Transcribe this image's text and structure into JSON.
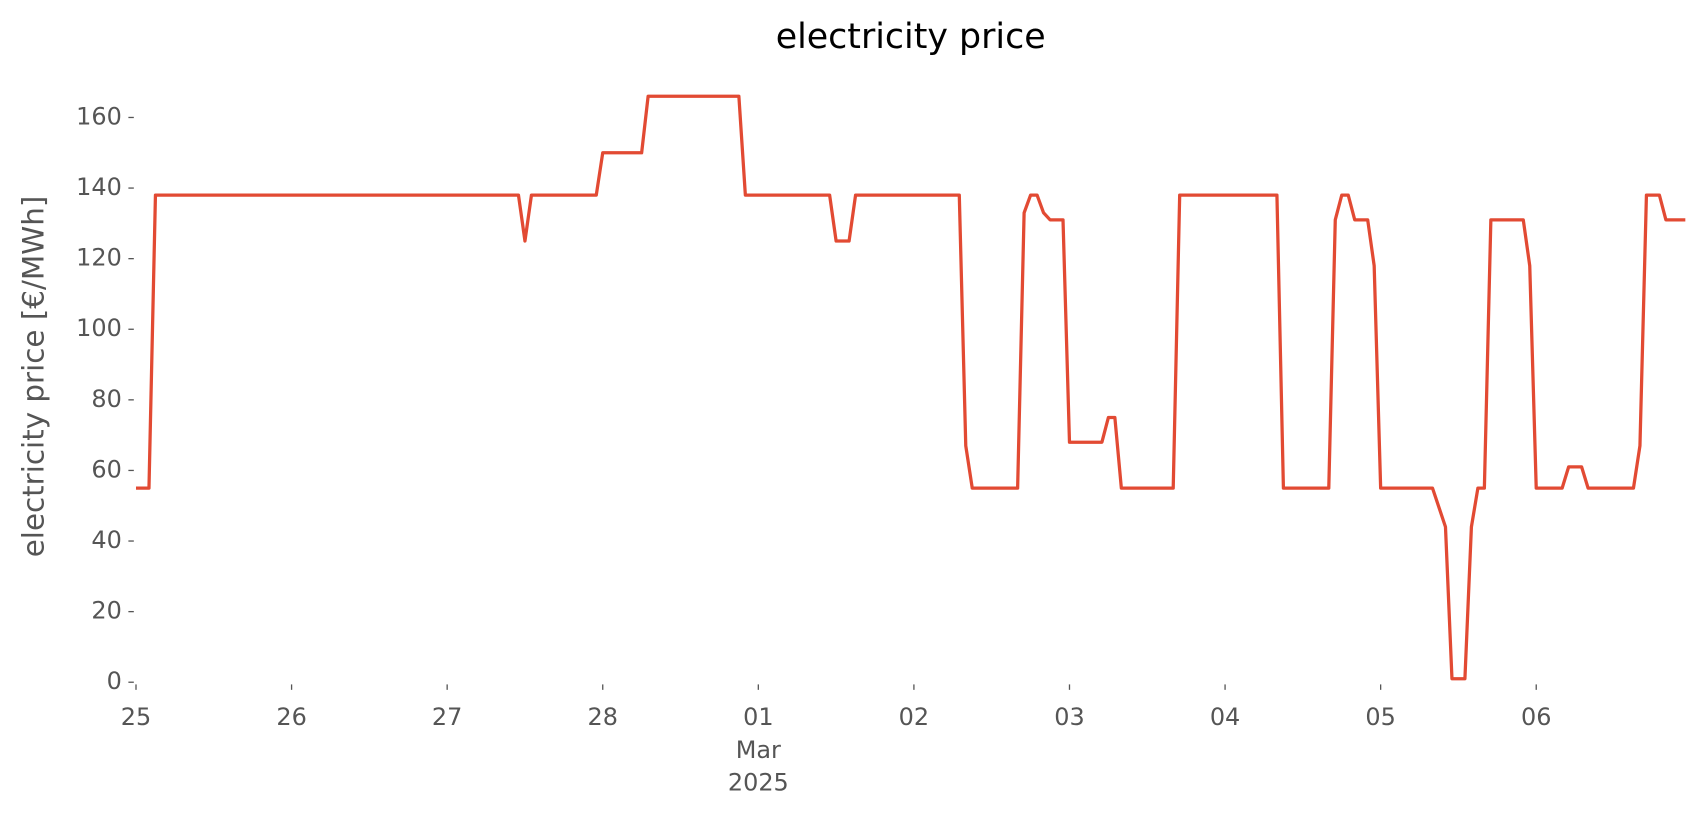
{
  "chart_data": {
    "type": "line",
    "title": "electricity price",
    "ylabel": "electricity price [€/MWh]",
    "x": [
      "2025-02-25T00:00",
      "2025-02-25T02:00",
      "2025-02-25T03:00",
      "2025-02-27T11:00",
      "2025-02-27T12:00",
      "2025-02-27T13:00",
      "2025-02-27T23:00",
      "2025-02-28T00:00",
      "2025-02-28T06:00",
      "2025-02-28T07:00",
      "2025-02-28T21:00",
      "2025-02-28T22:00",
      "2025-03-01T11:00",
      "2025-03-01T12:00",
      "2025-03-01T14:00",
      "2025-03-01T15:00",
      "2025-03-02T07:00",
      "2025-03-02T08:00",
      "2025-03-02T09:00",
      "2025-03-02T16:00",
      "2025-03-02T17:00",
      "2025-03-02T18:00",
      "2025-03-02T19:00",
      "2025-03-02T20:00",
      "2025-03-02T21:00",
      "2025-03-02T23:00",
      "2025-03-03T00:00",
      "2025-03-03T05:00",
      "2025-03-03T06:00",
      "2025-03-03T07:00",
      "2025-03-03T08:00",
      "2025-03-03T16:00",
      "2025-03-03T17:00",
      "2025-03-04T08:00",
      "2025-03-04T09:00",
      "2025-03-04T16:00",
      "2025-03-04T17:00",
      "2025-03-04T18:00",
      "2025-03-04T19:00",
      "2025-03-04T20:00",
      "2025-03-04T22:00",
      "2025-03-04T23:00",
      "2025-03-05T00:00",
      "2025-03-05T08:00",
      "2025-03-05T10:00",
      "2025-03-05T11:00",
      "2025-03-05T13:00",
      "2025-03-05T14:00",
      "2025-03-05T15:00",
      "2025-03-05T16:00",
      "2025-03-05T17:00",
      "2025-03-05T22:00",
      "2025-03-05T23:00",
      "2025-03-06T00:00",
      "2025-03-06T04:00",
      "2025-03-06T05:00",
      "2025-03-06T07:00",
      "2025-03-06T08:00",
      "2025-03-06T15:00",
      "2025-03-06T16:00",
      "2025-03-06T17:00",
      "2025-03-06T19:00",
      "2025-03-06T20:00",
      "2025-03-06T23:00"
    ],
    "series": [
      {
        "name": "electricity price",
        "color": "#E24A33",
        "values": [
          55,
          55,
          138,
          138,
          125,
          138,
          138,
          150,
          150,
          166,
          166,
          138,
          138,
          125,
          125,
          138,
          138,
          67,
          55,
          55,
          133,
          138,
          138,
          133,
          131,
          131,
          68,
          68,
          75,
          75,
          55,
          55,
          138,
          138,
          55,
          55,
          131,
          138,
          138,
          131,
          131,
          118,
          55,
          55,
          44,
          1,
          1,
          44,
          55,
          55,
          131,
          131,
          118,
          55,
          55,
          61,
          61,
          55,
          55,
          67,
          138,
          138,
          131,
          131
        ]
      }
    ],
    "xlim": [
      "2025-02-25T00:00",
      "2025-03-06T23:00"
    ],
    "xticks": [
      {
        "value": "2025-02-25",
        "label": "25"
      },
      {
        "value": "2025-02-26",
        "label": "26"
      },
      {
        "value": "2025-02-27",
        "label": "27"
      },
      {
        "value": "2025-02-28",
        "label": "28"
      },
      {
        "value": "2025-03-01",
        "label": [
          "01",
          "Mar",
          "2025"
        ]
      },
      {
        "value": "2025-03-02",
        "label": "02"
      },
      {
        "value": "2025-03-03",
        "label": "03"
      },
      {
        "value": "2025-03-04",
        "label": "04"
      },
      {
        "value": "2025-03-05",
        "label": "05"
      },
      {
        "value": "2025-03-06",
        "label": "06"
      }
    ],
    "ylim": [
      0,
      172
    ],
    "yticks": [
      0,
      20,
      40,
      60,
      80,
      100,
      120,
      140,
      160
    ],
    "grid": false
  }
}
